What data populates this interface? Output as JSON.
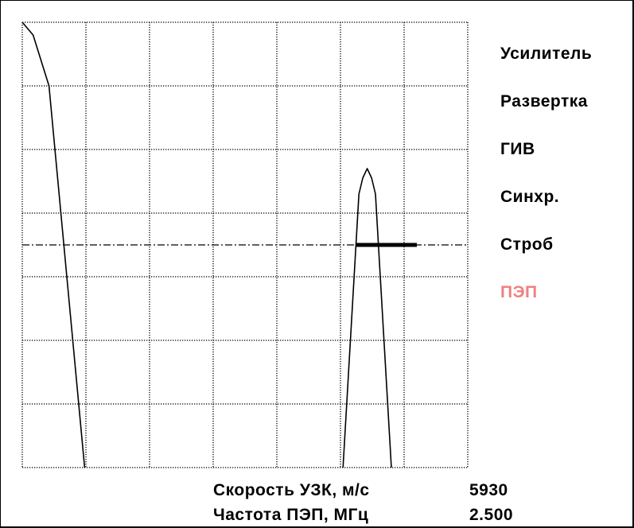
{
  "menu": {
    "items": [
      {
        "label": "Усилитель",
        "active": false
      },
      {
        "label": "Развертка",
        "active": false
      },
      {
        "label": "ГИВ",
        "active": false
      },
      {
        "label": "Синхр.",
        "active": false
      },
      {
        "label": "Строб",
        "active": false
      },
      {
        "label": "ПЭП",
        "active": true
      }
    ],
    "active_color": "#f08080",
    "normal_color": "#000000"
  },
  "readouts": {
    "speed": {
      "label": "Скорость  УЗК,  м/с",
      "value": "5930"
    },
    "freq": {
      "label": "Частота  ПЭП, МГц",
      "value": "2.500"
    }
  },
  "chart_data": {
    "type": "line",
    "grid": {
      "columns": 7,
      "rows": 7,
      "style": "dotted",
      "visible": true
    },
    "title": "",
    "xlabel": "",
    "ylabel": "",
    "xlim": [
      0,
      7
    ],
    "ylim": [
      0,
      7
    ],
    "series": [
      {
        "x": [
          0.0,
          0.17,
          0.42,
          0.98
        ],
        "y": [
          7.0,
          6.8,
          6.0,
          0.0
        ]
      },
      {
        "x": [
          5.04,
          5.29,
          5.35,
          5.42,
          5.49,
          5.55,
          5.8
        ],
        "y": [
          0.0,
          4.3,
          4.55,
          4.7,
          4.55,
          4.3,
          0.0
        ]
      }
    ],
    "gate": {
      "level": 3.5,
      "x_start": 5.25,
      "x_end": 6.2
    },
    "center_line": {
      "y": 3.5,
      "style": "dash-dot"
    }
  }
}
